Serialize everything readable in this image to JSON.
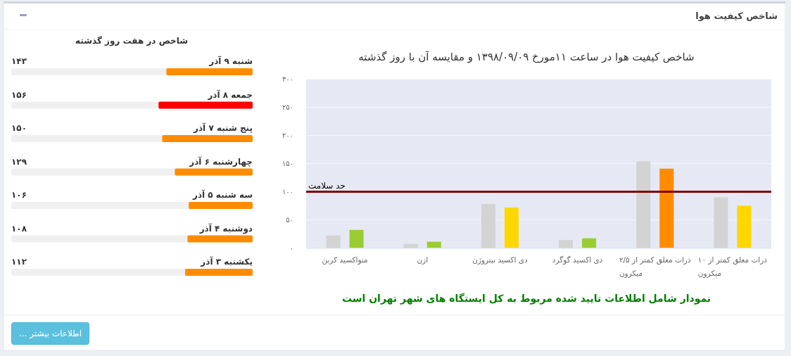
{
  "chart_data": [
    {
      "type": "bar",
      "title": "شاخص کیفیت هوا در ساعت ۱۱مورخ ۱۳۹۸/۰۹/۰۹ و مقایسه آن با روز گذشته",
      "categories": [
        "منواکسید کربن",
        "ازن",
        "دی اکسید نیتروژن",
        "دی اکسید گوگرد",
        "ذرات معلق کمتر از ۲/۵ میکرون",
        "ذرات معلق کمتر از ۱۰ میکرون"
      ],
      "series": [
        {
          "color": "#d3d3d3",
          "values": [
            22,
            7,
            78,
            14,
            154,
            90
          ]
        },
        {
          "colors": [
            "#9acd32",
            "#9acd32",
            "#ffd700",
            "#9acd32",
            "#ff8c00",
            "#ffd700"
          ],
          "values": [
            32,
            11,
            72,
            17,
            141,
            75
          ]
        }
      ],
      "ylim": [
        0,
        300
      ],
      "yticks": [
        {
          "value": 0,
          "label": "۰"
        },
        {
          "value": 50,
          "label": "۵۰"
        },
        {
          "value": 100,
          "label": "۱۰۰"
        },
        {
          "value": 150,
          "label": "۱۵۰"
        },
        {
          "value": 200,
          "label": "۲۰۰"
        },
        {
          "value": 250,
          "label": "۲۵۰"
        },
        {
          "value": 300,
          "label": "۳۰۰"
        }
      ],
      "grid": "y",
      "ref_lines": [
        {
          "axis": "y",
          "value": 100,
          "label": "حد سلامت",
          "color": "#800000"
        }
      ],
      "annotations": [
        "شاخص کیفیت هوا",
        "نمودار شامل اطلاعات تایید شده مربوط به کل ایستگاه های شهر تهران است"
      ]
    },
    {
      "type": "bar",
      "orientation": "horizontal",
      "title": "شاخص در هفت روز گذشته",
      "categories": [
        "شنبه ۹ آذر",
        "جمعه ۸ آذر",
        "پنج شنبه ۷ آذر",
        "چهارشنبه ۶ آذر",
        "سه شنبه ۵ آذر",
        "دوشنبه ۴ آذر",
        "یکشنبه ۳ آذر"
      ],
      "values": [
        143,
        156,
        150,
        129,
        106,
        108,
        112
      ],
      "colors": [
        "#ff8c00",
        "#ff0000",
        "#ff8c00",
        "#ff8c00",
        "#ff8c00",
        "#ff8c00",
        "#ff8c00"
      ],
      "value_labels": [
        "۱۴۳",
        "۱۵۶",
        "۱۵۰",
        "۱۲۹",
        "۱۰۶",
        "۱۰۸",
        "۱۱۲"
      ],
      "xlim": [
        400,
        0
      ],
      "tick_labels": "y",
      "annotations": [
        "اطلاعات بیشتر ..."
      ]
    }
  ]
}
